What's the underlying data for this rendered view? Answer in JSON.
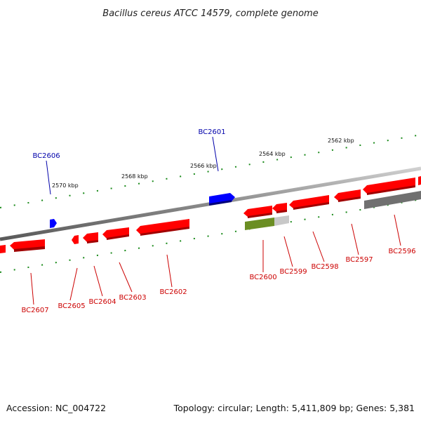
{
  "title": "Bacillus cereus ATCC 14579, complete genome",
  "footer": {
    "accession": "Accession: NC_004722",
    "summary": "Topology: circular; Length: 5,411,809 bp; Genes: 5,381"
  },
  "colors": {
    "forward_gene": "#0000ff",
    "reverse_gene": "#ff0000",
    "reverse_label": "#cc0000",
    "forward_label": "#0000aa",
    "backbone": "#808080",
    "ticks": "#1a8a1a",
    "rna_gene": "#6b8e23",
    "pseudo_gene": "#707070"
  },
  "ticks": [
    "2570 kbp",
    "2568 kbp",
    "2566 kbp",
    "2564 kbp",
    "2562 kbp"
  ],
  "genes": [
    {
      "name": "BC2606",
      "strand": "+",
      "kind": "cds"
    },
    {
      "name": "BC2601",
      "strand": "+",
      "kind": "cds"
    },
    {
      "name": "BC2607",
      "strand": "-",
      "kind": "cds"
    },
    {
      "name": "BC2605",
      "strand": "-",
      "kind": "cds"
    },
    {
      "name": "BC2604",
      "strand": "-",
      "kind": "cds"
    },
    {
      "name": "BC2603",
      "strand": "-",
      "kind": "cds"
    },
    {
      "name": "BC2602",
      "strand": "-",
      "kind": "cds"
    },
    {
      "name": "BC2600",
      "strand": "-",
      "kind": "rna"
    },
    {
      "name": "BC2599",
      "strand": "-",
      "kind": "cds"
    },
    {
      "name": "BC2598",
      "strand": "-",
      "kind": "cds"
    },
    {
      "name": "BC2597",
      "strand": "-",
      "kind": "cds"
    },
    {
      "name": "BC2596",
      "strand": "-",
      "kind": "pseudo"
    }
  ]
}
